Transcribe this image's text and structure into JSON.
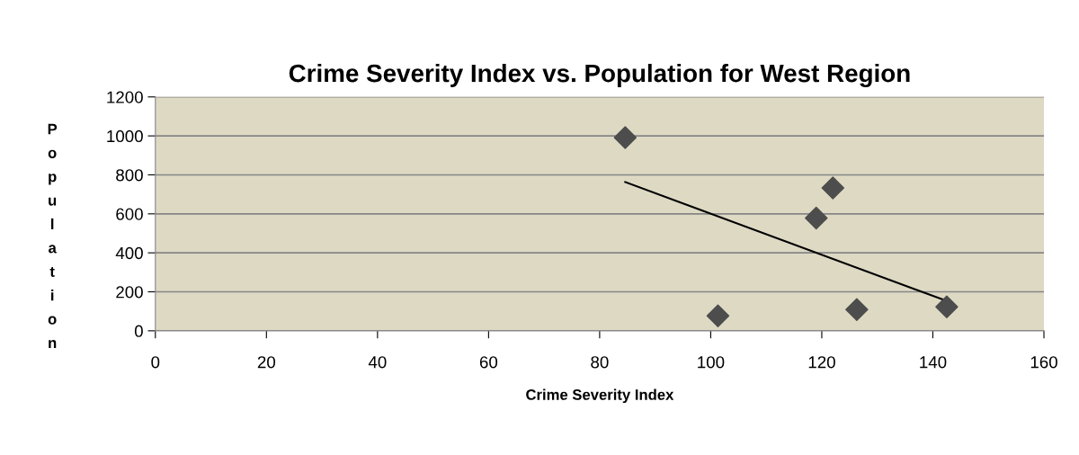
{
  "chart_data": {
    "type": "scatter",
    "title": "Crime Severity Index vs. Population for West Region",
    "xlabel": "Crime Severity Index",
    "ylabel": "Population",
    "series": [
      {
        "color": "#4d4d4d",
        "marker": "diamond",
        "x": [
          84.6,
          101.3,
          119.0,
          122.0,
          126.3,
          142.5
        ],
        "values": [
          991,
          77,
          578,
          733,
          109,
          123
        ]
      },
      {
        "type": "line",
        "color": "#000000",
        "marker": "none",
        "line_style": "solid",
        "x": [
          84.6,
          142.5
        ],
        "values": [
          763,
          153
        ]
      }
    ],
    "xlim": [
      0,
      160
    ],
    "xticks": [
      0,
      20,
      40,
      60,
      80,
      100,
      120,
      140,
      160
    ],
    "ylim": [
      0,
      1200
    ],
    "yticks": [
      0,
      200,
      400,
      600,
      800,
      1000,
      1200
    ],
    "grid": "y",
    "legend": false
  }
}
